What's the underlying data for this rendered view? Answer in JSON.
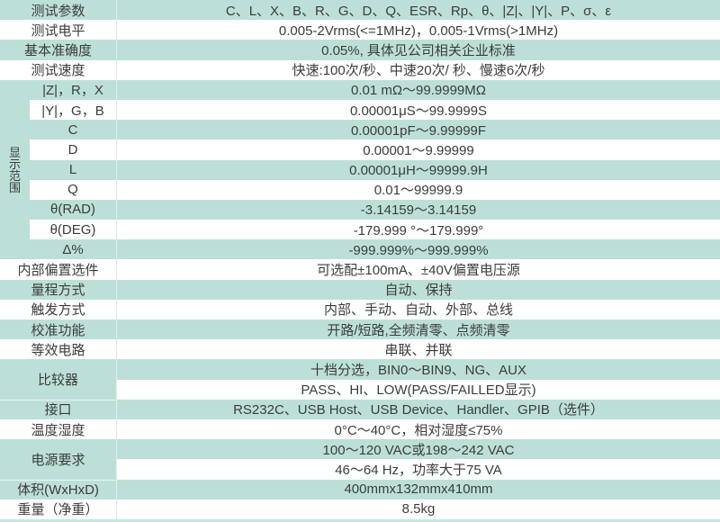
{
  "colors": {
    "row_teal": "#bce0d8",
    "row_white": "#ffffff",
    "text": "#3c3c3c",
    "divider_on_white": "#e2e2e2",
    "bottom_strip": "#c6e5de"
  },
  "top_rows": [
    {
      "label": "测试参数",
      "value": "C、L、X、B、R、G、D、Q、ESR、Rp、θ、|Z|、|Y|、P、σ、ε"
    },
    {
      "label": "测试电平",
      "value": "0.005-2Vrms(<=1MHz)，0.005-1Vrms(>1MHz)"
    },
    {
      "label": "基本准确度",
      "value": "0.05%, 具体见公司相关企业标准"
    },
    {
      "label": "测试速度",
      "value": "快速:100次/秒、中速20次/ 秒、慢速6次/秒"
    }
  ],
  "display_range": {
    "group_label": "显示范围",
    "rows": [
      {
        "label": "|Z|，R，X",
        "value": "0.01 mΩ～99.9999MΩ"
      },
      {
        "label": "|Y|，G，B",
        "value": "0.00001μS～99.9999S"
      },
      {
        "label": "C",
        "value": "0.00001pF～9.99999F"
      },
      {
        "label": "D",
        "value": "0.00001～9.99999"
      },
      {
        "label": "L",
        "value": "0.00001μH～99999.9H"
      },
      {
        "label": "Q",
        "value": "0.01～99999.9"
      },
      {
        "label": "θ(RAD)",
        "value": "-3.14159～3.14159"
      },
      {
        "label": "θ(DEG)",
        "value": "-179.999 °～179.999°"
      },
      {
        "label": "Δ%",
        "value": "-999.999%～999.999%"
      }
    ]
  },
  "mid_rows": [
    {
      "label": "内部偏置选件",
      "value": "可选配±100mA、±40V偏置电压源"
    },
    {
      "label": "量程方式",
      "value": "自动、保持"
    },
    {
      "label": "触发方式",
      "value": "内部、手动、自动、外部、总线"
    },
    {
      "label": "校准功能",
      "value": "开路/短路,全频清零、点频清零"
    },
    {
      "label": "等效电路",
      "value": "串联、并联"
    }
  ],
  "comparator": {
    "label": "比较器",
    "line1": "十档分选，BIN0～BIN9、NG、AUX",
    "line2": "PASS、HI、LOW(PASS/FAILLED显示)"
  },
  "io_rows": [
    {
      "label": "接口",
      "value": "RS232C、USB Host、USB Device、Handler、GPIB（选件）"
    },
    {
      "label": "温度湿度",
      "value": "0°C～40°C，相对湿度≤75%"
    }
  ],
  "power": {
    "label": "电源要求",
    "line1": "100～120 VAC或198～242 VAC",
    "line2": "46～64 Hz，功率大于75 VA"
  },
  "bottom_rows": [
    {
      "label": "体积(WxHxD)",
      "value": "400mmx132mmx410mm"
    },
    {
      "label": "重量（净重）",
      "value": "8.5kg"
    }
  ]
}
